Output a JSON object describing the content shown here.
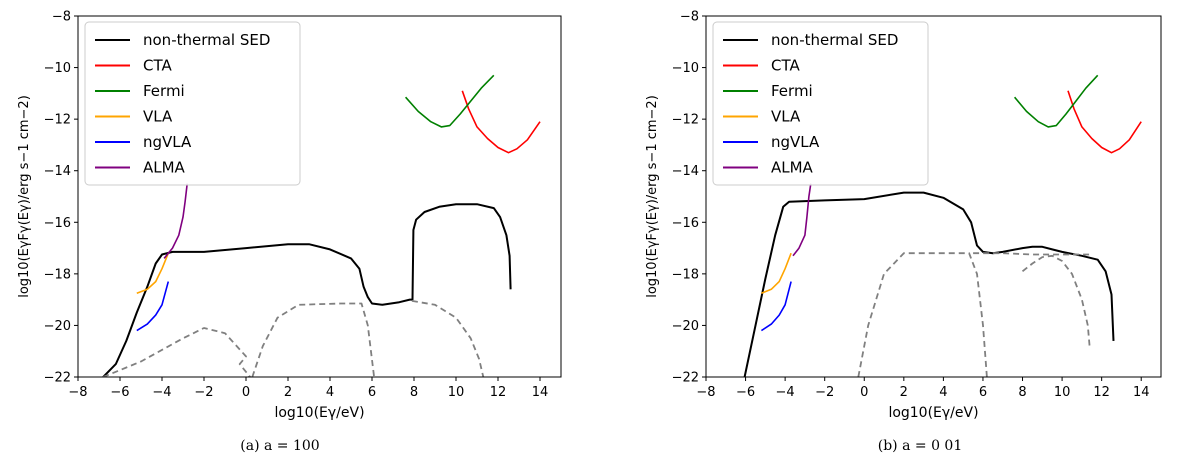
{
  "chart_data": [
    {
      "type": "line",
      "caption": "(a) a = 100",
      "xlabel": "log10(Eγ/eV)",
      "ylabel": "log10(EγFγ(Eγ)/erg s−1 cm−2)",
      "xlim": [
        -8,
        15
      ],
      "ylim": [
        -22,
        -8
      ],
      "xticks": [
        -8,
        -6,
        -4,
        -2,
        0,
        2,
        4,
        6,
        8,
        10,
        12,
        14
      ],
      "yticks": [
        -22,
        -20,
        -18,
        -16,
        -14,
        -12,
        -10,
        -8
      ],
      "legend": [
        "non-thermal SED",
        "CTA",
        "Fermi",
        "VLA",
        "ngVLA",
        "ALMA"
      ],
      "legend_position": "top-left",
      "colors": {
        "sed": "#000000",
        "CTA": "#ff0000",
        "Fermi": "#008000",
        "VLA": "#ffa500",
        "ngVLA": "#0000ff",
        "ALMA": "#800080",
        "component": "#808080"
      },
      "series": [
        {
          "name": "non-thermal SED",
          "style": "solid",
          "points": [
            [
              -6.8,
              -22
            ],
            [
              -6.2,
              -21.5
            ],
            [
              -5.7,
              -20.6
            ],
            [
              -5.2,
              -19.5
            ],
            [
              -4.7,
              -18.5
            ],
            [
              -4.3,
              -17.6
            ],
            [
              -4,
              -17.25
            ],
            [
              -3.5,
              -17.15
            ],
            [
              -2,
              -17.15
            ],
            [
              0,
              -17
            ],
            [
              2,
              -16.85
            ],
            [
              3,
              -16.85
            ],
            [
              4,
              -17.05
            ],
            [
              5,
              -17.4
            ],
            [
              5.4,
              -17.8
            ],
            [
              5.6,
              -18.5
            ],
            [
              5.8,
              -18.9
            ],
            [
              6,
              -19.15
            ],
            [
              6.5,
              -19.2
            ],
            [
              7.3,
              -19.1
            ],
            [
              7.8,
              -19
            ],
            [
              7.93,
              -19
            ],
            [
              7.97,
              -16.3
            ],
            [
              8.1,
              -15.9
            ],
            [
              8.5,
              -15.6
            ],
            [
              9.2,
              -15.4
            ],
            [
              10,
              -15.3
            ],
            [
              11,
              -15.3
            ],
            [
              11.8,
              -15.45
            ],
            [
              12.1,
              -15.8
            ],
            [
              12.4,
              -16.5
            ],
            [
              12.55,
              -17.3
            ],
            [
              12.6,
              -18.6
            ]
          ]
        },
        {
          "name": "component-1",
          "style": "dashed",
          "points": [
            [
              -6.8,
              -22
            ],
            [
              -5,
              -21.4
            ],
            [
              -3,
              -20.5
            ],
            [
              -2,
              -20.1
            ],
            [
              -1,
              -20.3
            ],
            [
              0,
              -21.2
            ],
            [
              -0.3,
              -21.5
            ],
            [
              0.2,
              -22
            ]
          ]
        },
        {
          "name": "component-1b",
          "style": "dashed",
          "points": [
            [
              0.2,
              -22
            ],
            [
              0.1,
              -22
            ]
          ]
        },
        {
          "name": "component-2",
          "style": "dashed",
          "points": [
            [
              0.3,
              -22
            ],
            [
              0.8,
              -20.8
            ],
            [
              1.5,
              -19.7
            ],
            [
              2.5,
              -19.2
            ],
            [
              4.5,
              -19.15
            ],
            [
              5.5,
              -19.15
            ],
            [
              5.8,
              -20
            ],
            [
              6.1,
              -22
            ]
          ]
        },
        {
          "name": "component-3",
          "style": "dashed",
          "points": [
            [
              7.9,
              -19.05
            ],
            [
              9,
              -19.2
            ],
            [
              10,
              -19.7
            ],
            [
              10.7,
              -20.5
            ],
            [
              11.1,
              -21.3
            ],
            [
              11.3,
              -22
            ]
          ]
        },
        {
          "name": "CTA",
          "style": "solid",
          "points": [
            [
              10.3,
              -10.9
            ],
            [
              10.6,
              -11.6
            ],
            [
              11,
              -12.3
            ],
            [
              11.5,
              -12.75
            ],
            [
              12,
              -13.1
            ],
            [
              12.5,
              -13.3
            ],
            [
              12.9,
              -13.15
            ],
            [
              13.4,
              -12.8
            ],
            [
              14,
              -12.1
            ]
          ]
        },
        {
          "name": "Fermi",
          "style": "solid",
          "points": [
            [
              7.6,
              -11.15
            ],
            [
              8.2,
              -11.7
            ],
            [
              8.8,
              -12.1
            ],
            [
              9.3,
              -12.3
            ],
            [
              9.7,
              -12.25
            ],
            [
              10.2,
              -11.8
            ],
            [
              10.7,
              -11.3
            ],
            [
              11.2,
              -10.8
            ],
            [
              11.8,
              -10.3
            ]
          ]
        },
        {
          "name": "VLA",
          "style": "solid",
          "points": [
            [
              -5.2,
              -18.75
            ],
            [
              -4.7,
              -18.6
            ],
            [
              -4.3,
              -18.3
            ],
            [
              -4,
              -17.8
            ],
            [
              -3.7,
              -17.2
            ]
          ]
        },
        {
          "name": "ngVLA",
          "style": "solid",
          "points": [
            [
              -5.2,
              -20.2
            ],
            [
              -4.7,
              -19.95
            ],
            [
              -4.3,
              -19.6
            ],
            [
              -4,
              -19.2
            ],
            [
              -3.7,
              -18.3
            ]
          ]
        },
        {
          "name": "ALMA",
          "style": "solid",
          "points": [
            [
              -3.9,
              -17.4
            ],
            [
              -3.5,
              -17
            ],
            [
              -3.2,
              -16.5
            ],
            [
              -3,
              -15.8
            ],
            [
              -2.9,
              -15.2
            ],
            [
              -2.8,
              -14.5
            ]
          ]
        }
      ]
    },
    {
      "type": "line",
      "caption": "(b) a = 0 01",
      "xlabel": "log10(Eγ/eV)",
      "ylabel": "log10(EγFγ(Eγ)/erg s−1 cm−2)",
      "xlim": [
        -8,
        15
      ],
      "ylim": [
        -22,
        -8
      ],
      "xticks": [
        -8,
        -6,
        -4,
        -2,
        0,
        2,
        4,
        6,
        8,
        10,
        12,
        14
      ],
      "yticks": [
        -22,
        -20,
        -18,
        -16,
        -14,
        -12,
        -10,
        -8
      ],
      "legend": [
        "non-thermal SED",
        "CTA",
        "Fermi",
        "VLA",
        "ngVLA",
        "ALMA"
      ],
      "legend_position": "top-left",
      "colors": {
        "sed": "#000000",
        "CTA": "#ff0000",
        "Fermi": "#008000",
        "VLA": "#ffa500",
        "ngVLA": "#0000ff",
        "ALMA": "#800080",
        "component": "#808080"
      },
      "series": [
        {
          "name": "non-thermal SED",
          "style": "solid",
          "points": [
            [
              -6.05,
              -22
            ],
            [
              -5.5,
              -20
            ],
            [
              -5,
              -18.2
            ],
            [
              -4.5,
              -16.5
            ],
            [
              -4.1,
              -15.4
            ],
            [
              -3.8,
              -15.2
            ],
            [
              -2,
              -15.15
            ],
            [
              0,
              -15.1
            ],
            [
              2,
              -14.85
            ],
            [
              3,
              -14.85
            ],
            [
              4,
              -15.05
            ],
            [
              5,
              -15.5
            ],
            [
              5.4,
              -16
            ],
            [
              5.7,
              -16.9
            ],
            [
              6,
              -17.15
            ],
            [
              6.5,
              -17.2
            ],
            [
              7,
              -17.15
            ],
            [
              8,
              -17
            ],
            [
              8.5,
              -16.95
            ],
            [
              9,
              -16.95
            ],
            [
              9.5,
              -17.05
            ],
            [
              10,
              -17.15
            ],
            [
              11,
              -17.3
            ],
            [
              11.8,
              -17.45
            ],
            [
              12.2,
              -17.9
            ],
            [
              12.5,
              -18.8
            ],
            [
              12.6,
              -20.6
            ]
          ]
        },
        {
          "name": "component-1",
          "style": "dashed",
          "points": [
            [
              -0.3,
              -22
            ],
            [
              0.2,
              -20
            ],
            [
              1,
              -18
            ],
            [
              2,
              -17.2
            ],
            [
              4,
              -17.2
            ],
            [
              5.3,
              -17.2
            ],
            [
              5.7,
              -18
            ],
            [
              6,
              -20
            ],
            [
              6.2,
              -22
            ]
          ]
        },
        {
          "name": "component-2",
          "style": "dashed",
          "points": [
            [
              5.5,
              -17.2
            ],
            [
              7,
              -17.2
            ],
            [
              8.5,
              -17.25
            ],
            [
              9.5,
              -17.25
            ],
            [
              10,
              -17.25
            ],
            [
              11,
              -17.25
            ],
            [
              11.4,
              -17.25
            ]
          ]
        },
        {
          "name": "component-3",
          "style": "dashed",
          "points": [
            [
              8,
              -17.9
            ],
            [
              8.5,
              -17.6
            ],
            [
              9,
              -17.35
            ],
            [
              9.5,
              -17.3
            ],
            [
              10,
              -17.5
            ],
            [
              10.5,
              -18
            ],
            [
              11,
              -19
            ],
            [
              11.3,
              -20
            ],
            [
              11.4,
              -20.9
            ]
          ]
        },
        {
          "name": "CTA",
          "style": "solid",
          "points": [
            [
              10.3,
              -10.9
            ],
            [
              10.6,
              -11.6
            ],
            [
              11,
              -12.3
            ],
            [
              11.5,
              -12.75
            ],
            [
              12,
              -13.1
            ],
            [
              12.5,
              -13.3
            ],
            [
              12.9,
              -13.15
            ],
            [
              13.4,
              -12.8
            ],
            [
              14,
              -12.1
            ]
          ]
        },
        {
          "name": "Fermi",
          "style": "solid",
          "points": [
            [
              7.6,
              -11.15
            ],
            [
              8.2,
              -11.7
            ],
            [
              8.8,
              -12.1
            ],
            [
              9.3,
              -12.3
            ],
            [
              9.7,
              -12.25
            ],
            [
              10.2,
              -11.8
            ],
            [
              10.7,
              -11.3
            ],
            [
              11.2,
              -10.8
            ],
            [
              11.8,
              -10.3
            ]
          ]
        },
        {
          "name": "VLA",
          "style": "solid",
          "points": [
            [
              -5.2,
              -18.75
            ],
            [
              -4.7,
              -18.6
            ],
            [
              -4.3,
              -18.3
            ],
            [
              -4,
              -17.8
            ],
            [
              -3.7,
              -17.2
            ]
          ]
        },
        {
          "name": "ngVLA",
          "style": "solid",
          "points": [
            [
              -5.2,
              -20.2
            ],
            [
              -4.7,
              -19.95
            ],
            [
              -4.3,
              -19.6
            ],
            [
              -4,
              -19.2
            ],
            [
              -3.7,
              -18.3
            ]
          ]
        },
        {
          "name": "ALMA",
          "style": "solid",
          "points": [
            [
              -3.6,
              -17.3
            ],
            [
              -3.3,
              -17
            ],
            [
              -3,
              -16.5
            ],
            [
              -2.9,
              -15.8
            ],
            [
              -2.8,
              -15
            ],
            [
              -2.7,
              -14.5
            ]
          ]
        }
      ]
    }
  ]
}
